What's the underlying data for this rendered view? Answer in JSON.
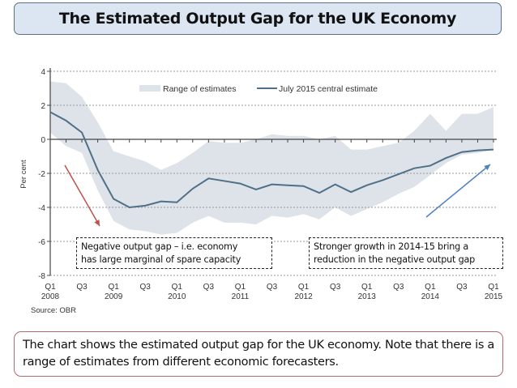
{
  "slide_title": "The Estimated Output Gap for the UK Economy",
  "note": "The chart shows the estimated output gap for the UK economy. Note that there is a range of estimates from different economic forecasters.",
  "annotations": {
    "left": [
      "Negative output gap – i.e. economy",
      "has large marginal of spare capacity"
    ],
    "right": [
      "Stronger growth in 2014-15 bring a",
      "reduction in the negative output gap"
    ]
  },
  "colors": {
    "band": "#dde3e9",
    "line": "#4f7088",
    "red_arrow": "#c0504d",
    "blue_arrow": "#4f81bd"
  },
  "chart_data": {
    "type": "line",
    "ylabel": "Per cent",
    "source": "Source: OBR",
    "ylim": [
      -8,
      4
    ],
    "yticks": [
      "4",
      "2",
      "0",
      "-2",
      "-4",
      "-6",
      "-8"
    ],
    "grid": "dotted horizontal",
    "legend_position": "top",
    "x": [
      "Q1 2008",
      "Q2 2008",
      "Q3 2008",
      "Q4 2008",
      "Q1 2009",
      "Q2 2009",
      "Q3 2009",
      "Q4 2009",
      "Q1 2010",
      "Q2 2010",
      "Q3 2010",
      "Q4 2010",
      "Q1 2011",
      "Q2 2011",
      "Q3 2011",
      "Q4 2011",
      "Q1 2012",
      "Q2 2012",
      "Q3 2012",
      "Q4 2012",
      "Q1 2013",
      "Q2 2013",
      "Q3 2013",
      "Q4 2013",
      "Q1 2014",
      "Q2 2014",
      "Q3 2014",
      "Q4 2014",
      "Q1 2015"
    ],
    "xtick_labels": [
      [
        "Q1",
        "2008"
      ],
      [
        "Q3",
        ""
      ],
      [
        "Q1",
        "2009"
      ],
      [
        "Q3",
        ""
      ],
      [
        "Q1",
        "2010"
      ],
      [
        "Q3",
        ""
      ],
      [
        "Q1",
        "2011"
      ],
      [
        "Q3",
        ""
      ],
      [
        "Q1",
        "2012"
      ],
      [
        "Q3",
        ""
      ],
      [
        "Q1",
        "2013"
      ],
      [
        "Q3",
        ""
      ],
      [
        "Q1",
        "2014"
      ],
      [
        "Q3",
        ""
      ],
      [
        "Q1",
        "2015"
      ]
    ],
    "series": [
      {
        "name": "Range of estimates",
        "type": "area",
        "upper": [
          3.4,
          3.3,
          2.5,
          1.0,
          -0.7,
          -1.0,
          -1.3,
          -1.8,
          -1.4,
          -0.8,
          -0.1,
          -0.2,
          -0.2,
          0.0,
          0.3,
          0.2,
          0.2,
          0.0,
          0.2,
          -0.6,
          -0.6,
          -0.4,
          -0.2,
          0.5,
          1.5,
          0.5,
          1.5,
          1.5,
          1.9
        ],
        "lower": [
          0.4,
          -0.4,
          -0.8,
          -3.0,
          -4.8,
          -5.3,
          -5.4,
          -5.6,
          -5.5,
          -4.9,
          -4.5,
          -4.9,
          -4.9,
          -5.0,
          -4.5,
          -4.6,
          -4.4,
          -4.7,
          -4.0,
          -4.5,
          -4.1,
          -3.7,
          -3.2,
          -2.8,
          -2.1,
          -1.4,
          -0.9,
          -0.8,
          -0.6
        ]
      },
      {
        "name": "July 2015 central estimate",
        "type": "line",
        "values": [
          1.6,
          1.1,
          0.4,
          -1.8,
          -3.5,
          -4.0,
          -3.9,
          -3.65,
          -3.7,
          -2.9,
          -2.3,
          -2.45,
          -2.6,
          -2.95,
          -2.65,
          -2.7,
          -2.75,
          -3.15,
          -2.65,
          -3.1,
          -2.7,
          -2.4,
          -2.05,
          -1.7,
          -1.55,
          -1.1,
          -0.75,
          -0.65,
          -0.6
        ]
      }
    ]
  }
}
